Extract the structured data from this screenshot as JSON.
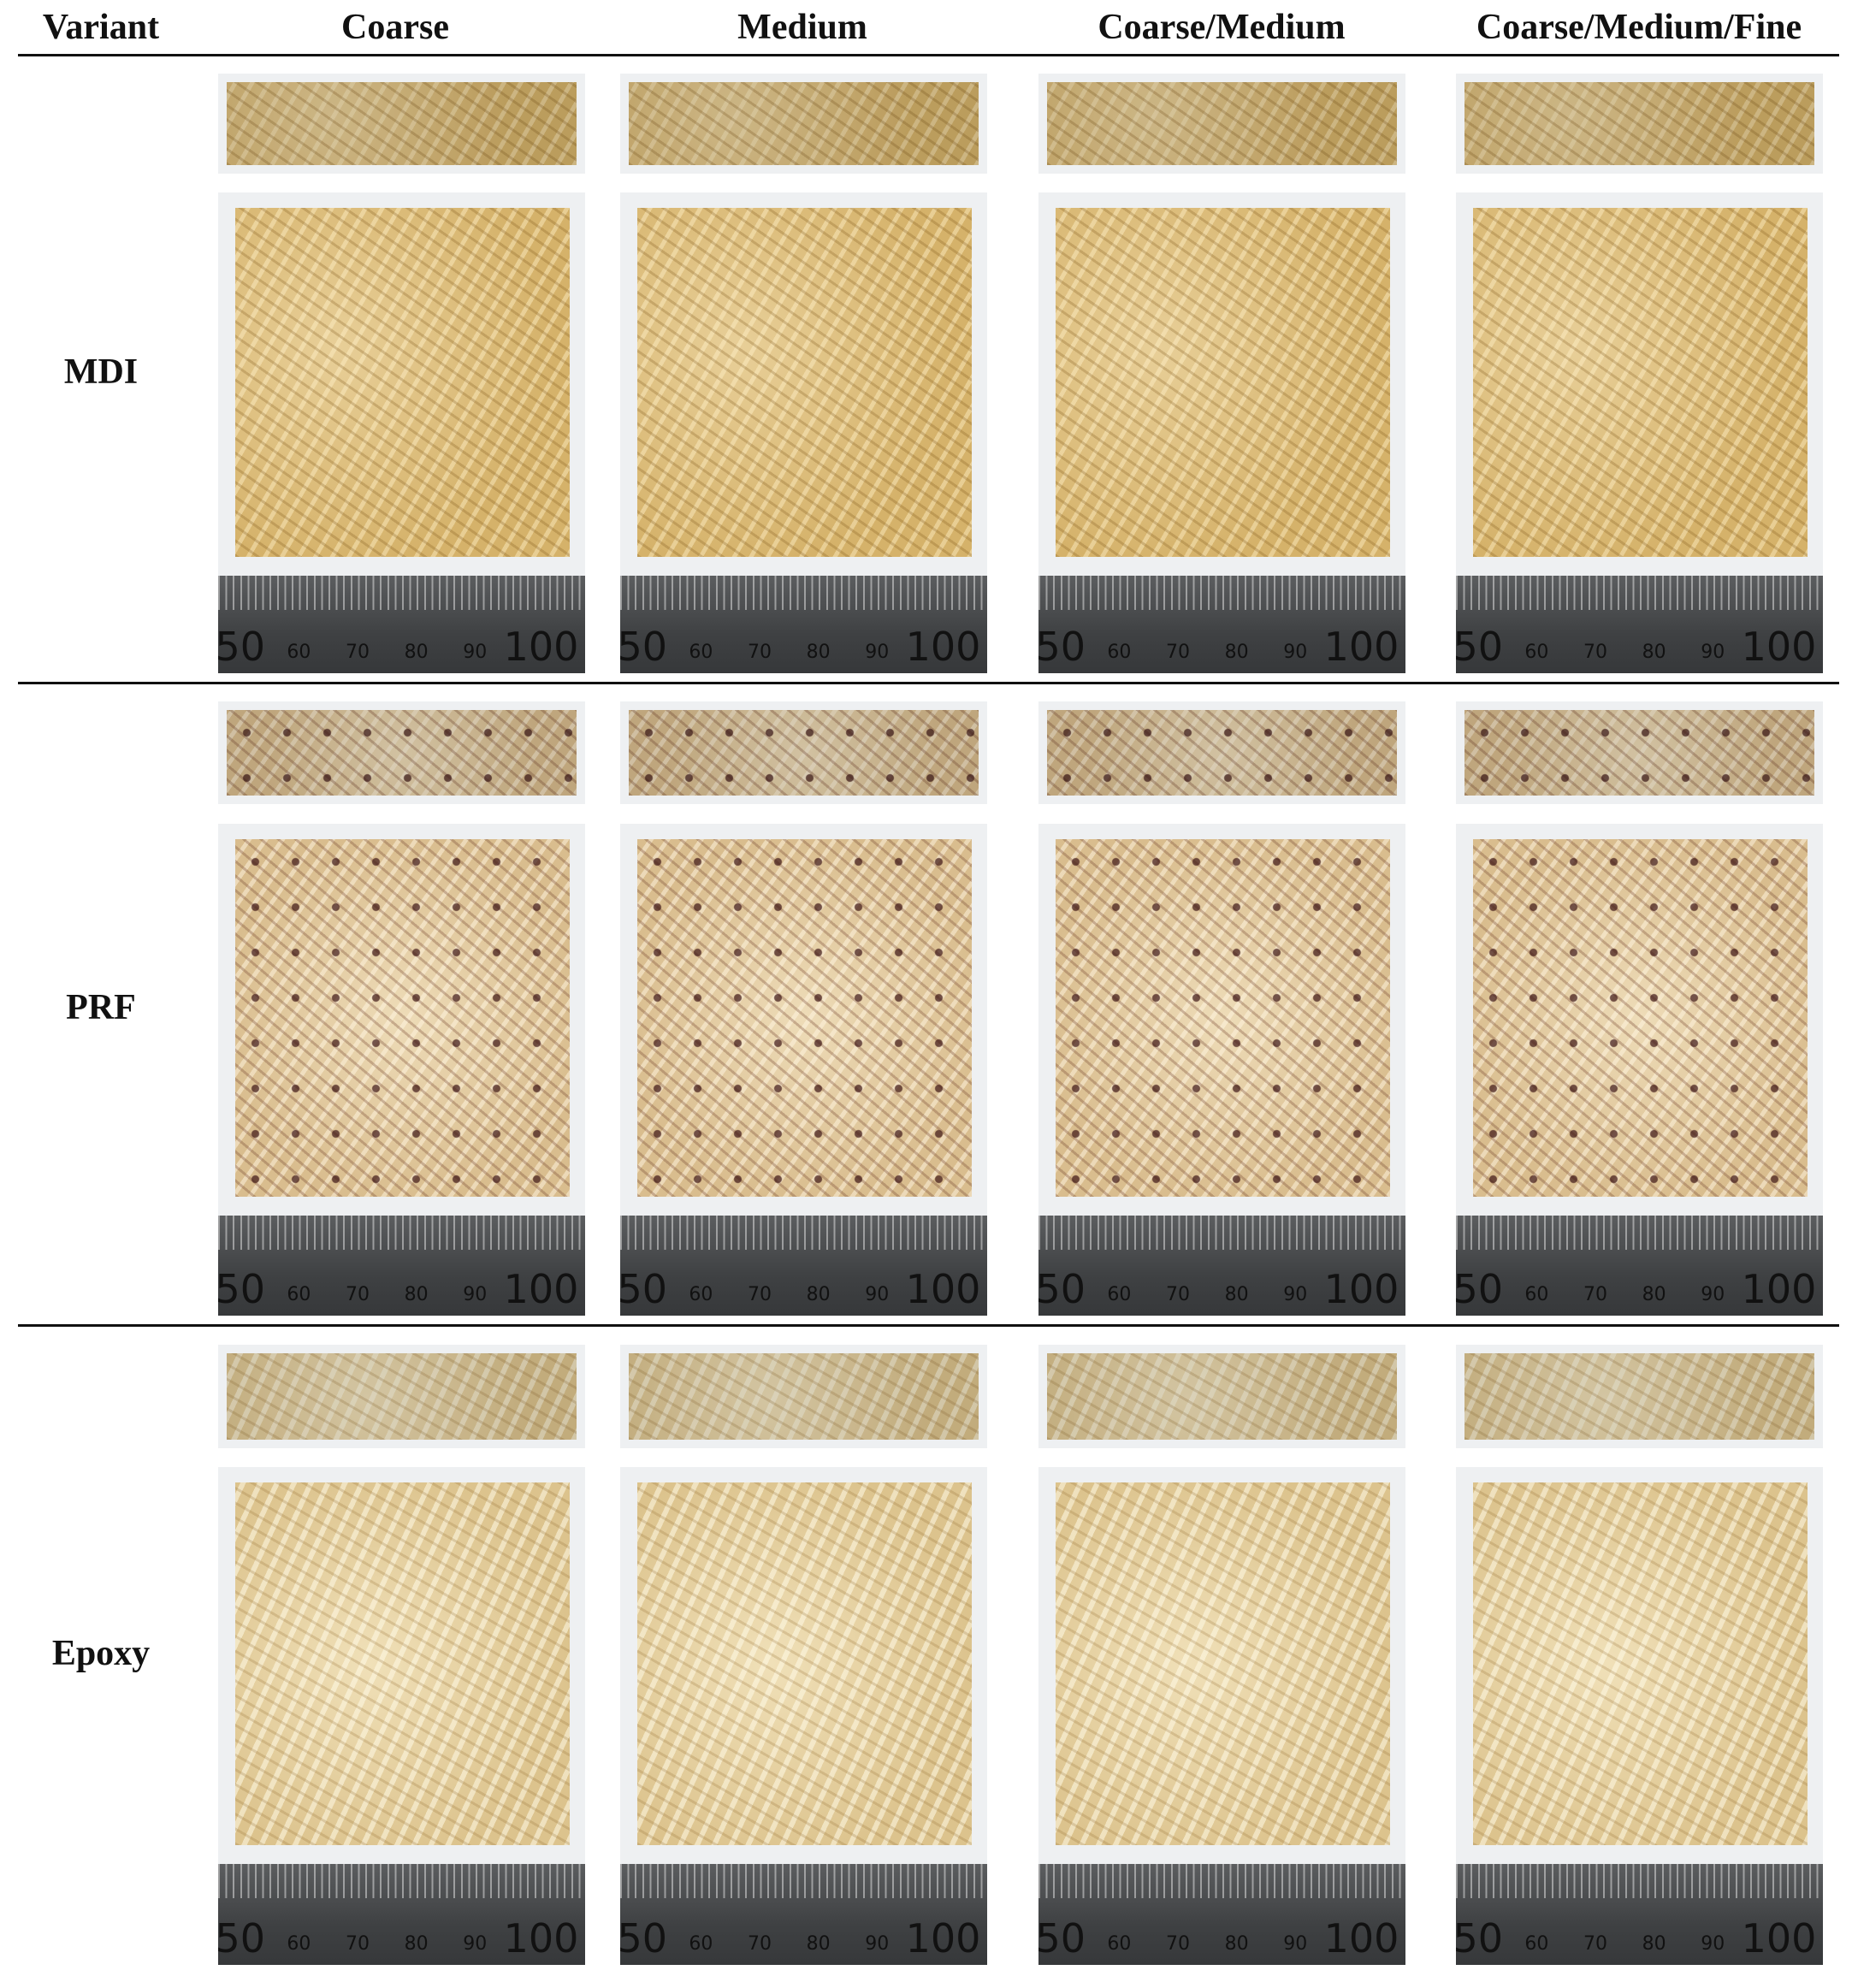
{
  "header": [
    "Variant",
    "Coarse",
    "Medium",
    "Coarse/Medium",
    "Coarse/Medium/Fine"
  ],
  "rows": [
    {
      "label": "MDI"
    },
    {
      "label": "PRF"
    },
    {
      "label": "Epoxy"
    }
  ],
  "ruler_labels": [
    "50",
    "60",
    "70",
    "80",
    "90",
    "100"
  ]
}
